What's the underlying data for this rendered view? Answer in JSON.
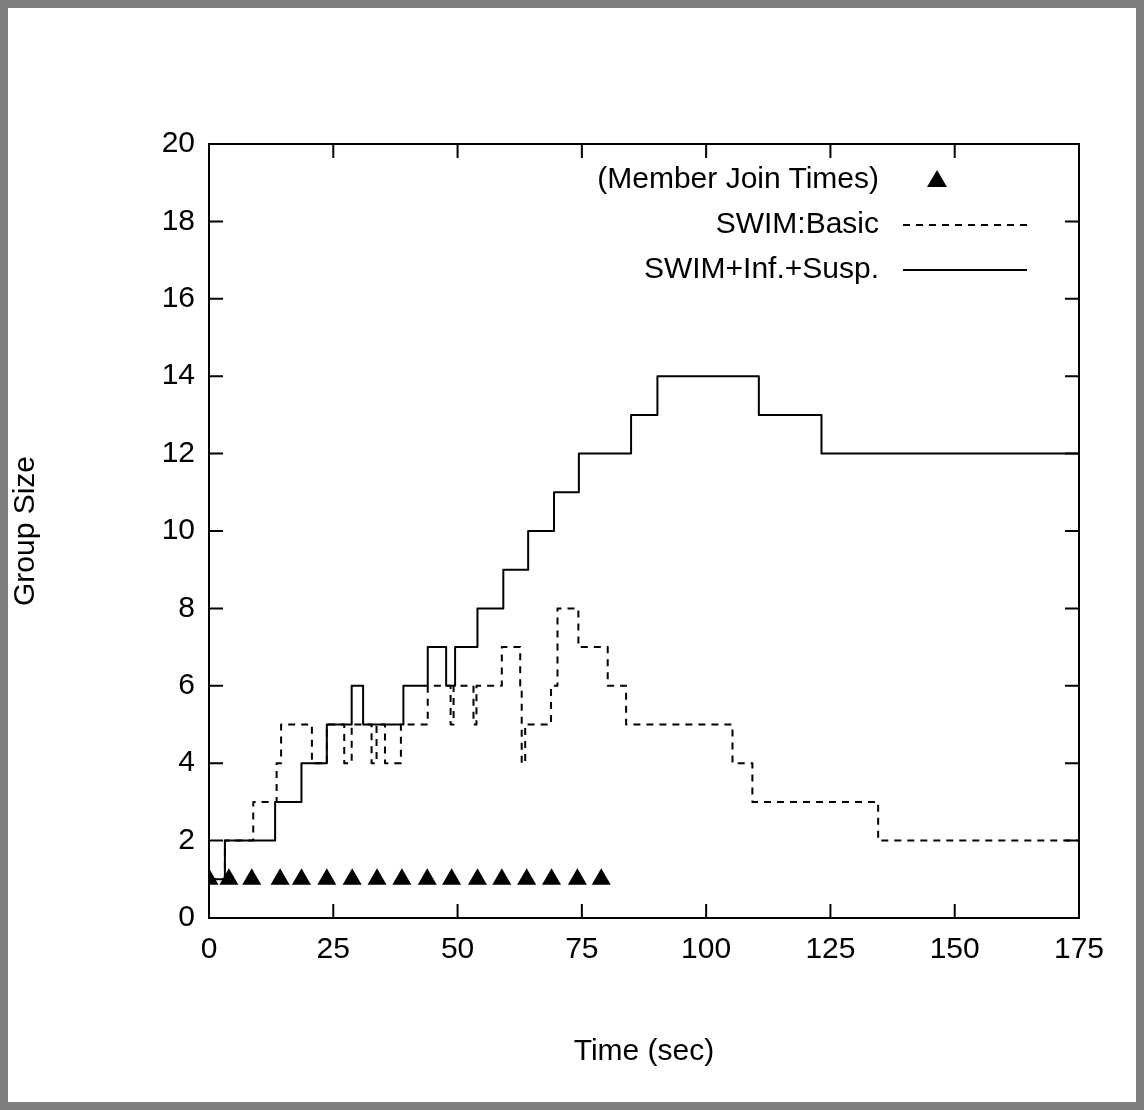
{
  "chart_data": {
    "type": "step",
    "xlabel": "Time (sec)",
    "ylabel": "Group Size",
    "xlim": [
      0,
      175
    ],
    "xticks": [
      0,
      25,
      50,
      75,
      100,
      125,
      150,
      175
    ],
    "ylim": [
      0,
      20
    ],
    "yticks": [
      0,
      2,
      4,
      6,
      8,
      10,
      12,
      14,
      16,
      18,
      20
    ],
    "grid": false,
    "legend": "top right",
    "series": [
      {
        "name": "(Member Join Times)",
        "type": "scatter",
        "marker": "triangle",
        "color": "#000000",
        "x": [
          0,
          4,
          8.6,
          14.3,
          18.6,
          23.7,
          28.8,
          33.8,
          38.8,
          43.9,
          48.8,
          54,
          58.9,
          63.9,
          68.9,
          74.1,
          78.9
        ],
        "values": [
          1,
          1,
          1,
          1,
          1,
          1,
          1,
          1,
          1,
          1,
          1,
          1,
          1,
          1,
          1,
          1,
          1
        ]
      },
      {
        "name": "SWIM:Basic",
        "line_style": "dashed",
        "marker": "none",
        "color": "#000000",
        "x": [
          0,
          3.2,
          8.9,
          13.6,
          14.5,
          20.7,
          23.7,
          27.2,
          28.7,
          32.7,
          33.7,
          35.4,
          38.6,
          44,
          48.6,
          49.2,
          53.2,
          53.8,
          58.9,
          62.6,
          62.9,
          63.6,
          68.8,
          70.1,
          74.3,
          80.2,
          83.9,
          105.3,
          109.3,
          134.6,
          175
        ],
        "values": [
          1,
          2,
          3,
          4,
          5,
          4,
          5,
          4,
          5,
          4,
          5,
          4,
          5,
          6,
          5,
          6,
          5,
          6,
          7,
          6,
          4,
          5,
          6,
          8,
          7,
          6,
          5,
          4,
          3,
          2,
          2
        ]
      },
      {
        "name": "SWIM+Inf.+Susp.",
        "line_style": "solid",
        "marker": "none",
        "color": "#000000",
        "x": [
          0,
          3.2,
          13.3,
          18.6,
          23.7,
          28.7,
          31,
          39.1,
          44,
          47.7,
          49.5,
          54,
          59.2,
          64.2,
          69.4,
          74.4,
          84.9,
          90.2,
          110.6,
          123.2,
          175
        ],
        "values": [
          1,
          2,
          3,
          4,
          5,
          6,
          5,
          6,
          7,
          6,
          7,
          8,
          9,
          10,
          11,
          12,
          13,
          14,
          13,
          12,
          12
        ]
      }
    ]
  }
}
